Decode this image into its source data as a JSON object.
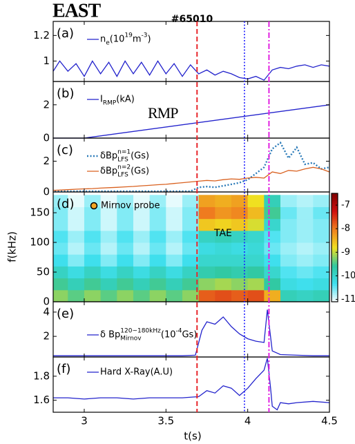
{
  "figure": {
    "logo": "EAST",
    "shot": "#65010",
    "xlabel": "t(s)",
    "xlim": [
      2.81,
      4.5
    ],
    "xticks": [
      3,
      3.5,
      4,
      4.5
    ],
    "markers": [
      {
        "x": 3.69,
        "color": "#e8252a",
        "style": "dashed"
      },
      {
        "x": 3.98,
        "color": "#1a1aff",
        "style": "dotted"
      },
      {
        "x": 4.13,
        "color": "#e020e0",
        "style": "dashdot"
      }
    ]
  },
  "chart_data": [
    {
      "type": "line",
      "label": "(a)",
      "ylim": [
        0.84,
        1.31
      ],
      "yticks": [
        1,
        1.2
      ],
      "series": [
        {
          "name": [
            {
              "text": "n"
            },
            {
              "text": "e",
              "pos": "sub"
            },
            {
              "text": "(10"
            },
            {
              "text": "19",
              "pos": "sup"
            },
            {
              "text": " m"
            },
            {
              "text": "-3",
              "pos": "sup"
            },
            {
              "text": ")"
            }
          ],
          "color": "#2222cc",
          "style": "solid",
          "x": [
            2.8,
            2.85,
            2.9,
            2.95,
            3.0,
            3.05,
            3.1,
            3.15,
            3.2,
            3.25,
            3.3,
            3.35,
            3.4,
            3.45,
            3.5,
            3.55,
            3.6,
            3.65,
            3.7,
            3.75,
            3.8,
            3.85,
            3.9,
            3.95,
            4.0,
            4.05,
            4.1,
            4.15,
            4.2,
            4.25,
            4.3,
            4.35,
            4.4,
            4.45,
            4.5
          ],
          "values": [
            0.9,
            1.0,
            0.92,
            0.98,
            0.88,
            1.0,
            0.9,
            0.99,
            0.88,
            1.0,
            0.9,
            0.99,
            0.89,
            1.0,
            0.9,
            0.98,
            0.88,
            0.97,
            0.9,
            0.93,
            0.89,
            0.92,
            0.9,
            0.87,
            0.86,
            0.88,
            0.85,
            0.93,
            0.95,
            0.94,
            0.96,
            0.97,
            0.95,
            0.97,
            0.96
          ]
        }
      ]
    },
    {
      "type": "line",
      "label": "(b)",
      "ylim": [
        0,
        3.4
      ],
      "yticks": [
        0,
        2
      ],
      "annotations": [
        "RMP"
      ],
      "series": [
        {
          "name": [
            {
              "text": "I"
            },
            {
              "text": "RMP",
              "pos": "sub"
            },
            {
              "text": "(kA)"
            }
          ],
          "color": "#2222cc",
          "style": "solid",
          "x": [
            2.8,
            3.0,
            4.5
          ],
          "values": [
            0,
            0,
            2.0
          ]
        }
      ]
    },
    {
      "type": "line",
      "label": "(c)",
      "ylim": [
        0,
        3.5
      ],
      "yticks": [
        0,
        2
      ],
      "series": [
        {
          "name": [
            {
              "text": "δBp"
            },
            {
              "text": "n=1",
              "pos": "sup"
            },
            {
              "text": "LFS",
              "pos": "sub",
              "stack": true
            },
            {
              "text": "(Gs)"
            }
          ],
          "color": "#2a7ab8",
          "style": "dotted",
          "x": [
            2.8,
            2.85,
            2.9,
            2.95,
            3.0,
            3.05,
            3.1,
            3.15,
            3.2,
            3.25,
            3.3,
            3.35,
            3.4,
            3.45,
            3.5,
            3.55,
            3.6,
            3.65,
            3.7,
            3.75,
            3.8,
            3.85,
            3.9,
            3.95,
            4.0,
            4.05,
            4.1,
            4.15,
            4.2,
            4.25,
            4.3,
            4.35,
            4.4,
            4.45,
            4.5
          ],
          "values": [
            0.05,
            0.05,
            0.05,
            0.05,
            0.05,
            0.05,
            0.05,
            0.05,
            0.05,
            0.05,
            0.05,
            0.05,
            0.05,
            0.05,
            0.05,
            0.05,
            0.05,
            0.05,
            0.3,
            0.35,
            0.3,
            0.4,
            0.5,
            0.6,
            0.8,
            1.2,
            1.6,
            2.8,
            3.2,
            2.2,
            2.9,
            1.8,
            1.9,
            1.5,
            1.6
          ]
        },
        {
          "name": [
            {
              "text": "δBp"
            },
            {
              "text": "n=2",
              "pos": "sup"
            },
            {
              "text": "LFS",
              "pos": "sub",
              "stack": true
            },
            {
              "text": "(Gs)"
            }
          ],
          "color": "#d9601e",
          "style": "solid",
          "x": [
            2.8,
            2.85,
            2.9,
            2.95,
            3.0,
            3.05,
            3.1,
            3.15,
            3.2,
            3.25,
            3.3,
            3.35,
            3.4,
            3.45,
            3.5,
            3.55,
            3.6,
            3.65,
            3.7,
            3.75,
            3.8,
            3.85,
            3.9,
            3.95,
            4.0,
            4.05,
            4.1,
            4.15,
            4.2,
            4.25,
            4.3,
            4.35,
            4.4,
            4.45,
            4.5
          ],
          "values": [
            0.1,
            0.12,
            0.15,
            0.18,
            0.2,
            0.22,
            0.25,
            0.28,
            0.3,
            0.33,
            0.36,
            0.4,
            0.43,
            0.47,
            0.5,
            0.55,
            0.6,
            0.65,
            0.7,
            0.75,
            0.72,
            0.8,
            0.85,
            0.82,
            0.9,
            0.95,
            0.9,
            1.3,
            1.2,
            1.4,
            1.35,
            1.5,
            1.6,
            1.5,
            1.3
          ]
        }
      ]
    },
    {
      "type": "heatmap",
      "label": "(d)",
      "ylabel": "f(kHz)",
      "ylim": [
        0,
        185
      ],
      "yticks": [
        0,
        50,
        100,
        150
      ],
      "probe": {
        "name": "Mirnov probe",
        "color": "#f5a623"
      },
      "annotations": [
        "TAE"
      ],
      "xbins": [
        2.8,
        2.9,
        3.0,
        3.1,
        3.2,
        3.3,
        3.4,
        3.5,
        3.6,
        3.7,
        3.8,
        3.9,
        4.0,
        4.1,
        4.2,
        4.3,
        4.4,
        4.5
      ],
      "ybins": [
        0,
        20,
        40,
        60,
        80,
        100,
        120,
        140,
        160,
        180
      ],
      "z": [
        [
          -9.2,
          -9.4,
          -9.2,
          -9.4,
          -9.2,
          -9.4,
          -9.2,
          -9.4,
          -9.2,
          -7.8,
          -7.7,
          -7.8,
          -7.7,
          -8.4,
          -9.8,
          -9.9,
          -9.8
        ],
        [
          -9.5,
          -9.8,
          -9.5,
          -9.8,
          -9.5,
          -9.8,
          -9.5,
          -9.8,
          -9.5,
          -9.2,
          -9.1,
          -9.2,
          -9.1,
          -9.6,
          -10.2,
          -10.3,
          -10.2
        ],
        [
          -9.9,
          -10.2,
          -9.9,
          -10.2,
          -9.9,
          -10.2,
          -9.9,
          -10.2,
          -9.9,
          -9.7,
          -9.6,
          -9.7,
          -9.6,
          -10.0,
          -10.4,
          -10.5,
          -10.4
        ],
        [
          -10.3,
          -10.6,
          -10.3,
          -10.6,
          -10.3,
          -10.6,
          -10.3,
          -10.6,
          -10.3,
          -10.0,
          -10.0,
          -10.0,
          -10.0,
          -10.3,
          -10.6,
          -10.7,
          -10.6
        ],
        [
          -10.5,
          -10.8,
          -10.5,
          -10.8,
          -10.5,
          -10.8,
          -10.5,
          -10.8,
          -10.5,
          -10.2,
          -10.1,
          -10.2,
          -10.1,
          -10.5,
          -10.7,
          -10.8,
          -10.7
        ],
        [
          -10.4,
          -10.7,
          -10.4,
          -10.7,
          -10.4,
          -10.7,
          -10.4,
          -10.7,
          -10.4,
          -9.9,
          -9.8,
          -9.9,
          -10.0,
          -10.4,
          -10.6,
          -10.7,
          -10.6
        ],
        [
          -10.6,
          -10.9,
          -10.6,
          -10.9,
          -10.6,
          -10.9,
          -10.6,
          -10.9,
          -10.6,
          -8.6,
          -8.7,
          -8.6,
          -8.9,
          -10.0,
          -10.6,
          -10.7,
          -10.6
        ],
        [
          -10.6,
          -10.9,
          -10.6,
          -10.9,
          -10.6,
          -10.9,
          -10.6,
          -10.9,
          -10.6,
          -8.0,
          -8.2,
          -8.1,
          -8.5,
          -9.5,
          -10.5,
          -10.7,
          -10.5
        ],
        [
          -10.7,
          -11.0,
          -10.7,
          -11.0,
          -10.7,
          -11.0,
          -10.7,
          -11.0,
          -10.7,
          -8.3,
          -8.4,
          -8.3,
          -8.8,
          -9.8,
          -10.7,
          -10.8,
          -10.7
        ]
      ],
      "zlim": [
        -11.1,
        -6.5
      ],
      "zticks": [
        -7,
        -8,
        -9,
        -10,
        -11
      ],
      "colormap": [
        "#ffffff",
        "#40e0f0",
        "#30c8a0",
        "#f0e020",
        "#f08020",
        "#d01010",
        "#800000"
      ]
    },
    {
      "type": "line",
      "label": "(e)",
      "ylim": [
        0.3,
        4.85
      ],
      "yticks": [
        2,
        4
      ],
      "series": [
        {
          "name": [
            {
              "text": "δ Bp"
            },
            {
              "text": "120~180kHz",
              "pos": "sup"
            },
            {
              "text": "Mirnov",
              "pos": "sub",
              "stack": true
            },
            {
              "text": "(10"
            },
            {
              "text": "-4",
              "pos": "sup"
            },
            {
              "text": "Gs)"
            }
          ],
          "color": "#2222cc",
          "style": "solid",
          "x": [
            2.8,
            2.9,
            3.0,
            3.1,
            3.2,
            3.3,
            3.4,
            3.5,
            3.6,
            3.68,
            3.72,
            3.75,
            3.8,
            3.85,
            3.9,
            3.95,
            4.0,
            4.05,
            4.1,
            4.12,
            4.15,
            4.2,
            4.3,
            4.4,
            4.5
          ],
          "values": [
            0.4,
            0.4,
            0.4,
            0.4,
            0.4,
            0.4,
            0.4,
            0.4,
            0.4,
            0.45,
            2.5,
            3.2,
            3.0,
            3.6,
            2.8,
            2.2,
            1.8,
            1.6,
            1.5,
            4.2,
            0.8,
            0.5,
            0.45,
            0.4,
            0.4
          ]
        }
      ]
    },
    {
      "type": "line",
      "label": "(f)",
      "ylim": [
        1.5,
        1.96
      ],
      "yticks": [
        1.6,
        1.8
      ],
      "series": [
        {
          "name": [
            {
              "text": "Hard X-Ray(A.U)"
            }
          ],
          "color": "#2222cc",
          "style": "solid",
          "x": [
            2.8,
            2.9,
            3.0,
            3.1,
            3.2,
            3.3,
            3.4,
            3.5,
            3.6,
            3.7,
            3.75,
            3.8,
            3.85,
            3.9,
            3.95,
            4.0,
            4.05,
            4.1,
            4.12,
            4.14,
            4.15,
            4.18,
            4.2,
            4.25,
            4.3,
            4.4,
            4.5
          ],
          "values": [
            1.62,
            1.62,
            1.61,
            1.62,
            1.62,
            1.61,
            1.62,
            1.62,
            1.62,
            1.63,
            1.68,
            1.66,
            1.72,
            1.7,
            1.64,
            1.7,
            1.78,
            1.85,
            1.95,
            1.7,
            1.55,
            1.52,
            1.58,
            1.57,
            1.58,
            1.59,
            1.58
          ]
        }
      ]
    }
  ]
}
